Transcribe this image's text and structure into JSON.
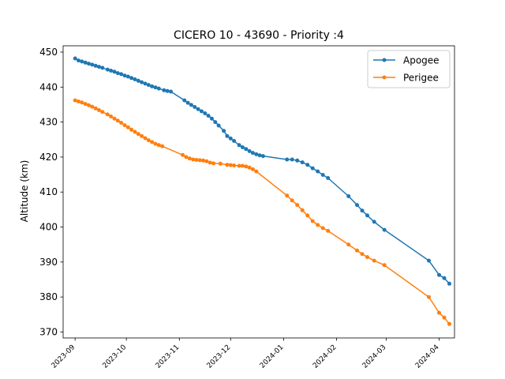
{
  "chart_data": {
    "type": "line",
    "title": "CICERO 10 - 43690 - Priority :4",
    "xlabel": "",
    "ylabel": "Altitude (km)",
    "x_ticks": [
      "2023-09",
      "2023-10",
      "2023-11",
      "2023-12",
      "2024-01",
      "2024-02",
      "2024-03",
      "2024-04"
    ],
    "y_ticks": [
      "370",
      "380",
      "390",
      "400",
      "410",
      "420",
      "430",
      "440",
      "450"
    ],
    "xlim": [
      "2023-08-25",
      "2024-04-10"
    ],
    "ylim": [
      368.3,
      451.8
    ],
    "grid": false,
    "legend_position": "upper right",
    "series": [
      {
        "name": "Apogee",
        "color": "#1f77b4",
        "points": [
          [
            "2023-09-01",
            448.2
          ],
          [
            "2023-09-03",
            447.6
          ],
          [
            "2023-09-05",
            447.3
          ],
          [
            "2023-09-07",
            447.0
          ],
          [
            "2023-09-09",
            446.7
          ],
          [
            "2023-09-11",
            446.4
          ],
          [
            "2023-09-13",
            446.1
          ],
          [
            "2023-09-15",
            445.8
          ],
          [
            "2023-09-17",
            445.5
          ],
          [
            "2023-09-20",
            445.0
          ],
          [
            "2023-09-22",
            444.7
          ],
          [
            "2023-09-24",
            444.4
          ],
          [
            "2023-09-26",
            444.0
          ],
          [
            "2023-09-28",
            443.7
          ],
          [
            "2023-09-30",
            443.3
          ],
          [
            "2023-10-02",
            443.0
          ],
          [
            "2023-10-04",
            442.6
          ],
          [
            "2023-10-06",
            442.2
          ],
          [
            "2023-10-08",
            441.8
          ],
          [
            "2023-10-10",
            441.4
          ],
          [
            "2023-10-12",
            441.0
          ],
          [
            "2023-10-14",
            440.6
          ],
          [
            "2023-10-16",
            440.2
          ],
          [
            "2023-10-18",
            439.9
          ],
          [
            "2023-10-20",
            439.6
          ],
          [
            "2023-10-23",
            439.1
          ],
          [
            "2023-10-25",
            438.9
          ],
          [
            "2023-10-27",
            438.7
          ],
          [
            "2023-11-04",
            436.2
          ],
          [
            "2023-11-06",
            435.5
          ],
          [
            "2023-11-08",
            434.9
          ],
          [
            "2023-11-10",
            434.3
          ],
          [
            "2023-11-12",
            433.7
          ],
          [
            "2023-11-14",
            433.1
          ],
          [
            "2023-11-16",
            432.5
          ],
          [
            "2023-11-18",
            431.8
          ],
          [
            "2023-11-20",
            431.0
          ],
          [
            "2023-11-22",
            430.0
          ],
          [
            "2023-11-24",
            429.0
          ],
          [
            "2023-11-27",
            427.5
          ],
          [
            "2023-11-29",
            426.0
          ],
          [
            "2023-12-01",
            425.3
          ],
          [
            "2023-12-03",
            424.6
          ],
          [
            "2023-12-06",
            423.4
          ],
          [
            "2023-12-08",
            422.8
          ],
          [
            "2023-12-10",
            422.3
          ],
          [
            "2023-12-12",
            421.7
          ],
          [
            "2023-12-14",
            421.2
          ],
          [
            "2023-12-16",
            420.8
          ],
          [
            "2023-12-18",
            420.5
          ],
          [
            "2023-12-20",
            420.3
          ],
          [
            "2024-01-03",
            419.3
          ],
          [
            "2024-01-06",
            419.3
          ],
          [
            "2024-01-09",
            419.0
          ],
          [
            "2024-01-12",
            418.5
          ],
          [
            "2024-01-15",
            417.8
          ],
          [
            "2024-01-18",
            416.8
          ],
          [
            "2024-01-21",
            415.9
          ],
          [
            "2024-01-24",
            414.9
          ],
          [
            "2024-01-27",
            414.0
          ],
          [
            "2024-02-08",
            408.8
          ],
          [
            "2024-02-13",
            406.3
          ],
          [
            "2024-02-16",
            404.7
          ],
          [
            "2024-02-19",
            403.3
          ],
          [
            "2024-02-23",
            401.5
          ],
          [
            "2024-02-29",
            399.2
          ],
          [
            "2024-03-26",
            390.4
          ],
          [
            "2024-04-01",
            386.3
          ],
          [
            "2024-04-04",
            385.4
          ],
          [
            "2024-04-07",
            383.8
          ]
        ]
      },
      {
        "name": "Perigee",
        "color": "#ff7f0e",
        "points": [
          [
            "2023-09-01",
            436.2
          ],
          [
            "2023-09-03",
            435.9
          ],
          [
            "2023-09-05",
            435.6
          ],
          [
            "2023-09-07",
            435.2
          ],
          [
            "2023-09-09",
            434.8
          ],
          [
            "2023-09-11",
            434.4
          ],
          [
            "2023-09-13",
            433.9
          ],
          [
            "2023-09-15",
            433.4
          ],
          [
            "2023-09-17",
            432.9
          ],
          [
            "2023-09-20",
            432.2
          ],
          [
            "2023-09-22",
            431.6
          ],
          [
            "2023-09-24",
            431.0
          ],
          [
            "2023-09-26",
            430.4
          ],
          [
            "2023-09-28",
            429.8
          ],
          [
            "2023-09-30",
            429.1
          ],
          [
            "2023-10-02",
            428.5
          ],
          [
            "2023-10-04",
            427.8
          ],
          [
            "2023-10-06",
            427.2
          ],
          [
            "2023-10-08",
            426.6
          ],
          [
            "2023-10-10",
            426.0
          ],
          [
            "2023-10-12",
            425.4
          ],
          [
            "2023-10-14",
            424.8
          ],
          [
            "2023-10-16",
            424.3
          ],
          [
            "2023-10-18",
            423.8
          ],
          [
            "2023-10-20",
            423.4
          ],
          [
            "2023-10-22",
            423.1
          ],
          [
            "2023-11-03",
            420.6
          ],
          [
            "2023-11-05",
            420.0
          ],
          [
            "2023-11-07",
            419.6
          ],
          [
            "2023-11-09",
            419.3
          ],
          [
            "2023-11-11",
            419.2
          ],
          [
            "2023-11-13",
            419.1
          ],
          [
            "2023-11-15",
            419.0
          ],
          [
            "2023-11-17",
            418.8
          ],
          [
            "2023-11-19",
            418.4
          ],
          [
            "2023-11-21",
            418.2
          ],
          [
            "2023-11-25",
            418.1
          ],
          [
            "2023-11-29",
            417.8
          ],
          [
            "2023-12-01",
            417.7
          ],
          [
            "2023-12-03",
            417.6
          ],
          [
            "2023-12-06",
            417.5
          ],
          [
            "2023-12-08",
            417.5
          ],
          [
            "2023-12-10",
            417.3
          ],
          [
            "2023-12-12",
            417.0
          ],
          [
            "2023-12-14",
            416.5
          ],
          [
            "2023-12-16",
            415.9
          ],
          [
            "2024-01-03",
            409.0
          ],
          [
            "2024-01-06",
            407.6
          ],
          [
            "2024-01-09",
            406.3
          ],
          [
            "2024-01-12",
            404.8
          ],
          [
            "2024-01-15",
            403.3
          ],
          [
            "2024-01-18",
            401.7
          ],
          [
            "2024-01-21",
            400.6
          ],
          [
            "2024-01-24",
            399.7
          ],
          [
            "2024-01-27",
            398.9
          ],
          [
            "2024-02-08",
            395.0
          ],
          [
            "2024-02-13",
            393.3
          ],
          [
            "2024-02-16",
            392.3
          ],
          [
            "2024-02-19",
            391.4
          ],
          [
            "2024-02-23",
            390.4
          ],
          [
            "2024-02-29",
            389.1
          ],
          [
            "2024-03-26",
            380.0
          ],
          [
            "2024-04-01",
            375.5
          ],
          [
            "2024-04-04",
            374.1
          ],
          [
            "2024-04-07",
            372.3
          ]
        ]
      }
    ]
  }
}
